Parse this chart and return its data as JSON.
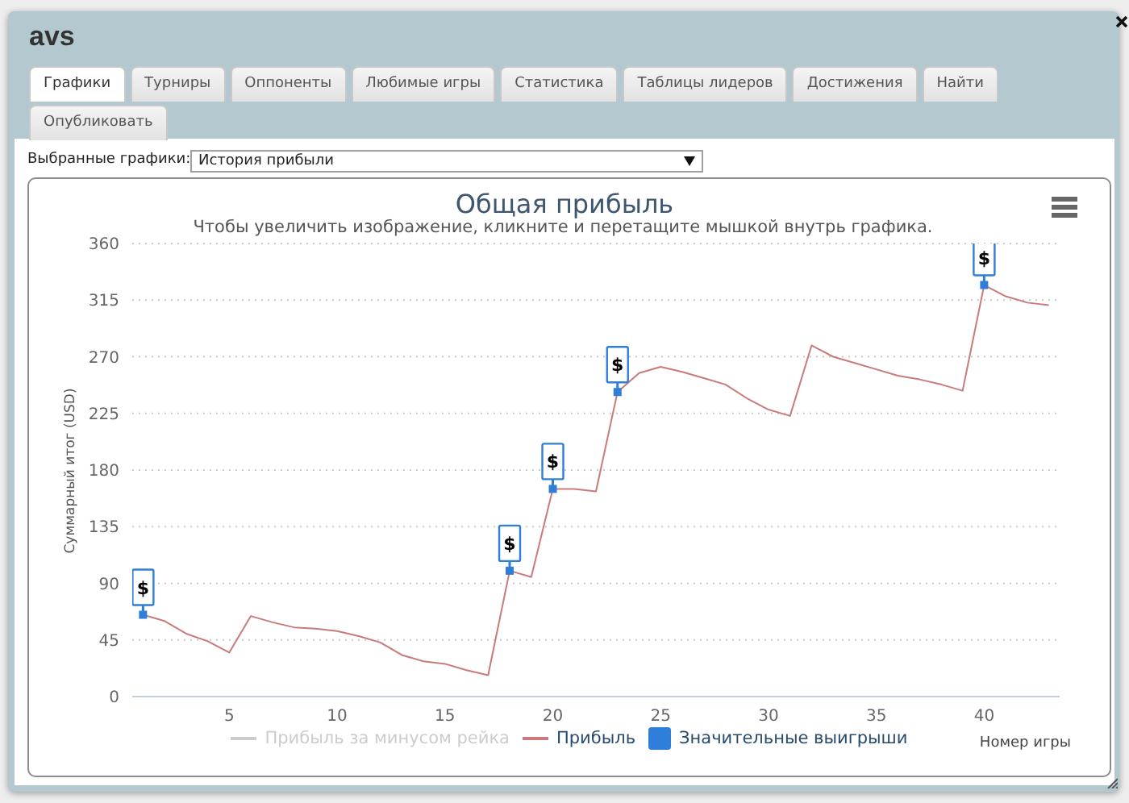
{
  "chart_data": {
    "type": "line",
    "title": "Общая прибыль",
    "subtitle": "Чтобы увеличить изображение, кликните и перетащите мышкой внутрь графика.",
    "xlabel": "Номер игры",
    "ylabel": "Суммарный итог (USD)",
    "annotations": [
      "avs",
      "Графики",
      "Турниры",
      "Оппоненты",
      "Любимые игры",
      "Статистика",
      "Таблицы лидеров",
      "Достижения",
      "Найти",
      "Опубликовать",
      "Выбранные графики:",
      "История прибыли"
    ],
    "x": [
      1,
      2,
      3,
      4,
      5,
      6,
      7,
      8,
      9,
      10,
      11,
      12,
      13,
      14,
      15,
      16,
      17,
      18,
      19,
      20,
      21,
      22,
      23,
      24,
      25,
      26,
      27,
      28,
      29,
      30,
      31,
      32,
      33,
      34,
      35,
      36,
      37,
      38,
      39,
      40,
      41,
      42,
      43
    ],
    "series": [
      {
        "name": "Прибыль за минусом рейка",
        "color": "#cccccc",
        "values": [
          null,
          null,
          null,
          null,
          null,
          null,
          null,
          null,
          null,
          null,
          null,
          null,
          null,
          null,
          null,
          null,
          null,
          null,
          null,
          null,
          null,
          null,
          null,
          null,
          null,
          null,
          null,
          null,
          null,
          null,
          null,
          null,
          null,
          null,
          null,
          null,
          null,
          null,
          null,
          null,
          null,
          null,
          null
        ]
      },
      {
        "name": "Прибыль",
        "color": "#c97a7a",
        "values": [
          65,
          60,
          50,
          44,
          35,
          64,
          59,
          55,
          54,
          52,
          48,
          43,
          33,
          28,
          26,
          21,
          17,
          100,
          95,
          165,
          165,
          163,
          242,
          257,
          262,
          258,
          253,
          248,
          237,
          228,
          223,
          279,
          270,
          265,
          260,
          255,
          252,
          248,
          243,
          327,
          318,
          313,
          311
        ]
      },
      {
        "name": "Значительные выигрыши",
        "type": "scatter",
        "color": "#2f7ed8",
        "marker": "square",
        "x": [
          1,
          18,
          20,
          23,
          40
        ],
        "values": [
          65,
          100,
          165,
          242,
          327
        ],
        "value_labels": [
          "$",
          "$",
          "$",
          "$",
          "$"
        ]
      }
    ],
    "xlim": [
      0.5,
      43.5
    ],
    "xticks": [
      5,
      10,
      15,
      20,
      25,
      30,
      35,
      40
    ],
    "ylim": [
      0,
      360
    ],
    "yticks": [
      0,
      45,
      90,
      135,
      180,
      225,
      270,
      315,
      360
    ],
    "grid": "y",
    "legend": "bottom",
    "marker": "none",
    "line_style": "solid"
  }
}
